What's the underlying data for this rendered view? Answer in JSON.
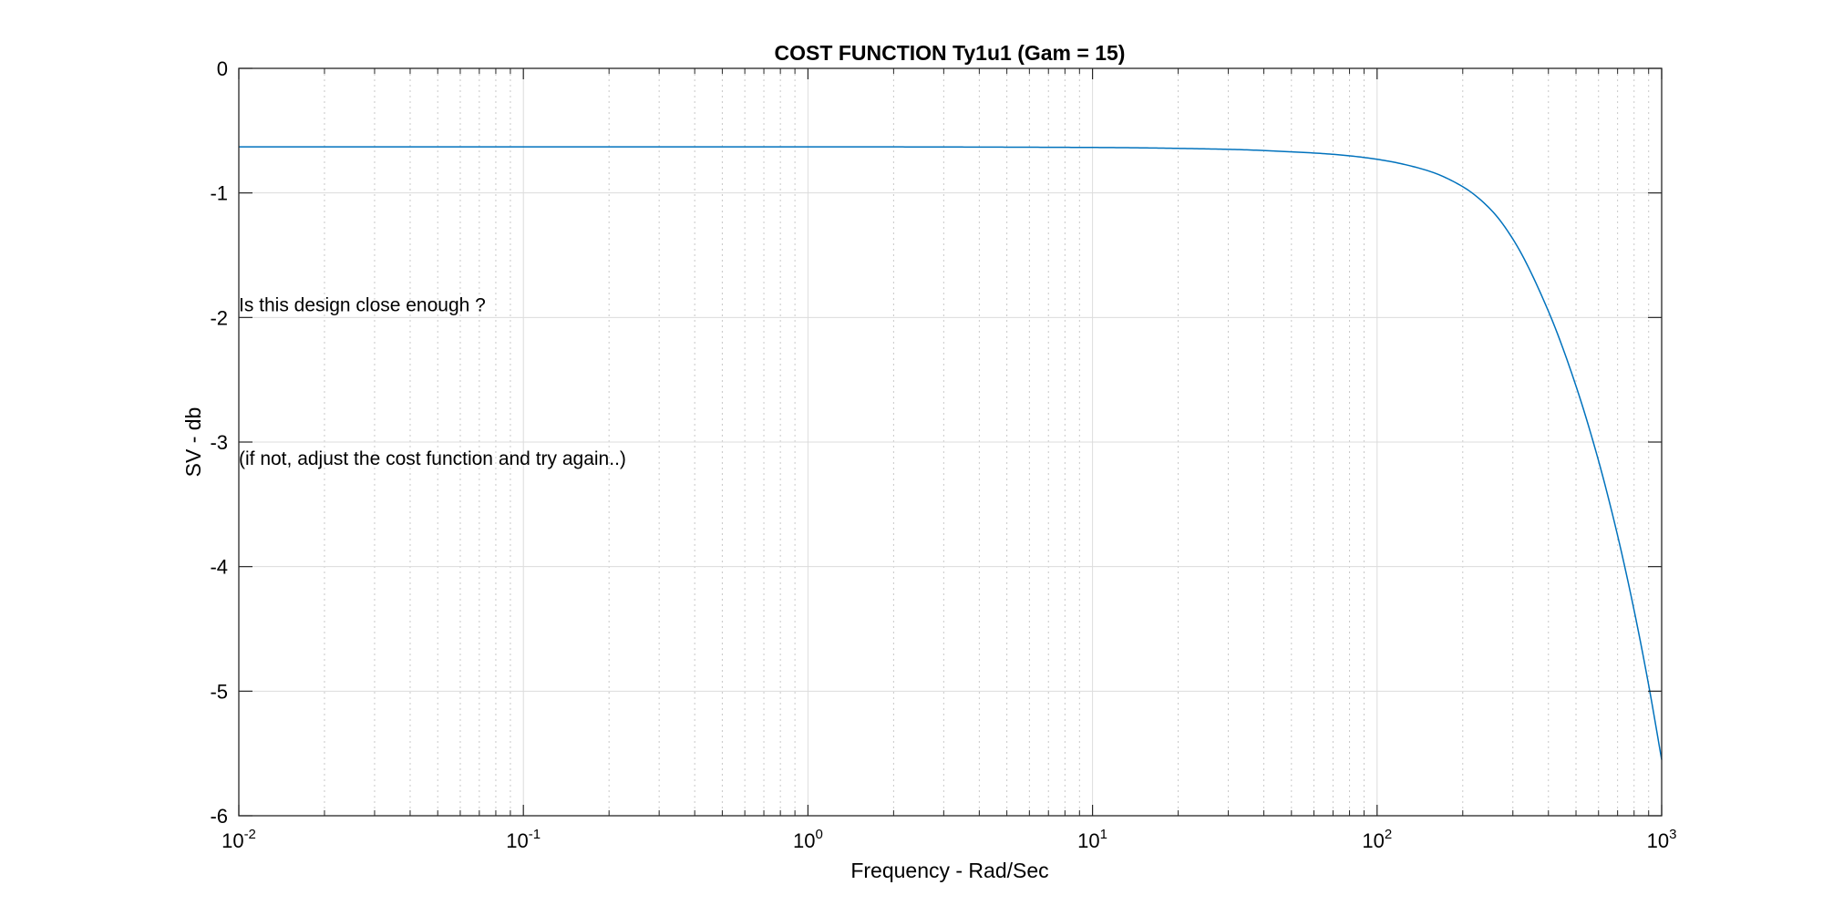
{
  "chart_data": {
    "type": "line",
    "title": "COST FUNCTION Ty1u1 (Gam = 15)",
    "xlabel": "Frequency - Rad/Sec",
    "ylabel": "SV - db",
    "xscale": "log",
    "xlim": [
      0.01,
      1000
    ],
    "ylim": [
      -6,
      0
    ],
    "grid": true,
    "minor_grid_x": true,
    "box": true,
    "line_color": "#0072BD",
    "x_ticks": [
      {
        "base": "10",
        "exp": "-2",
        "value": 0.01
      },
      {
        "base": "10",
        "exp": "-1",
        "value": 0.1
      },
      {
        "base": "10",
        "exp": "0",
        "value": 1
      },
      {
        "base": "10",
        "exp": "1",
        "value": 10
      },
      {
        "base": "10",
        "exp": "2",
        "value": 100
      },
      {
        "base": "10",
        "exp": "3",
        "value": 1000
      }
    ],
    "y_ticks": [
      {
        "label": "0",
        "value": 0
      },
      {
        "label": "-1",
        "value": -1
      },
      {
        "label": "-2",
        "value": -2
      },
      {
        "label": "-3",
        "value": -3
      },
      {
        "label": "-4",
        "value": -4
      },
      {
        "label": "-5",
        "value": -5
      },
      {
        "label": "-6",
        "value": -6
      }
    ],
    "series": [
      {
        "color": "#0072BD",
        "x": [
          0.01,
          0.1,
          1,
          10,
          30,
          50,
          70,
          100,
          150,
          200,
          250,
          300,
          400,
          500,
          600,
          700,
          800,
          900,
          1000
        ],
        "y": [
          -0.63,
          -0.63,
          -0.63,
          -0.635,
          -0.65,
          -0.67,
          -0.69,
          -0.73,
          -0.82,
          -0.95,
          -1.13,
          -1.37,
          -1.95,
          -2.55,
          -3.15,
          -3.75,
          -4.35,
          -4.95,
          -5.55
        ]
      }
    ],
    "annotations": [
      {
        "text": "Is this design close enough ?",
        "x": 0.01,
        "y": -1.9
      },
      {
        "text": "(if not, adjust the cost function and try again..)",
        "x": 0.01,
        "y": -3.13
      }
    ]
  }
}
